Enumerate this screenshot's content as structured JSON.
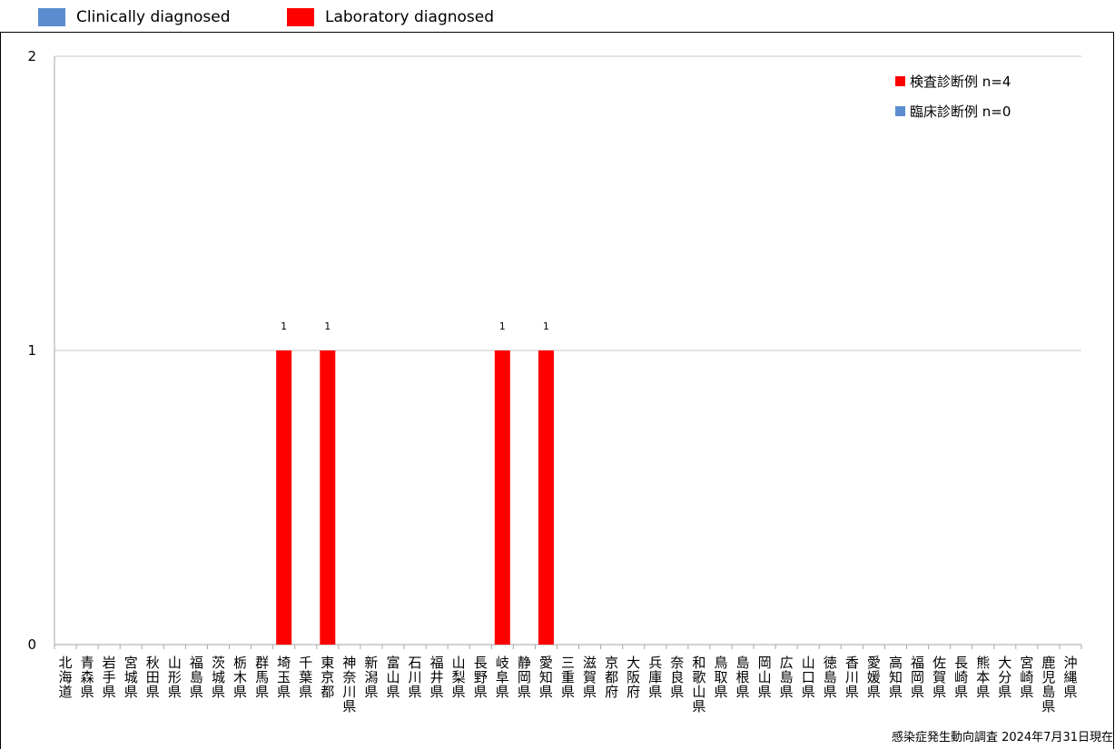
{
  "top_legend": [
    {
      "label": "Clinically diagnosed",
      "color": "#5b8ccf"
    },
    {
      "label": "Laboratory diagnosed",
      "color": "#ff0000"
    }
  ],
  "footer": "感染症発生動向調査 2024年7月31日現在",
  "chart_data": {
    "type": "bar",
    "ylim": [
      0,
      2
    ],
    "yticks": [
      0,
      1,
      2
    ],
    "grid": true,
    "categories": [
      "北海道",
      "青森県",
      "岩手県",
      "宮城県",
      "秋田県",
      "山形県",
      "福島県",
      "茨城県",
      "栃木県",
      "群馬県",
      "埼玉県",
      "千葉県",
      "東京都",
      "神奈川県",
      "新潟県",
      "富山県",
      "石川県",
      "福井県",
      "山梨県",
      "長野県",
      "岐阜県",
      "静岡県",
      "愛知県",
      "三重県",
      "滋賀県",
      "京都府",
      "大阪府",
      "兵庫県",
      "奈良県",
      "和歌山県",
      "鳥取県",
      "島根県",
      "岡山県",
      "広島県",
      "山口県",
      "徳島県",
      "香川県",
      "愛媛県",
      "高知県",
      "福岡県",
      "佐賀県",
      "長崎県",
      "熊本県",
      "大分県",
      "宮崎県",
      "鹿児島県",
      "沖縄県"
    ],
    "series": [
      {
        "name": "検査診断例 n=4",
        "color": "#ff0000",
        "values": [
          0,
          0,
          0,
          0,
          0,
          0,
          0,
          0,
          0,
          0,
          1,
          0,
          1,
          0,
          0,
          0,
          0,
          0,
          0,
          0,
          1,
          0,
          1,
          0,
          0,
          0,
          0,
          0,
          0,
          0,
          0,
          0,
          0,
          0,
          0,
          0,
          0,
          0,
          0,
          0,
          0,
          0,
          0,
          0,
          0,
          0,
          0
        ]
      },
      {
        "name": "臨床診断例 n=0",
        "color": "#5b8ccf",
        "values": [
          0,
          0,
          0,
          0,
          0,
          0,
          0,
          0,
          0,
          0,
          0,
          0,
          0,
          0,
          0,
          0,
          0,
          0,
          0,
          0,
          0,
          0,
          0,
          0,
          0,
          0,
          0,
          0,
          0,
          0,
          0,
          0,
          0,
          0,
          0,
          0,
          0,
          0,
          0,
          0,
          0,
          0,
          0,
          0,
          0,
          0,
          0
        ]
      }
    ],
    "legend_position": "top-right"
  }
}
